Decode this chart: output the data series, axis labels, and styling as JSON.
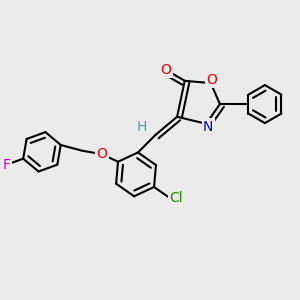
{
  "bg_color": "#ebebeb",
  "bond_color": "#000000",
  "bond_width": 1.5,
  "dbo": 0.018,
  "fig_size": [
    3.0,
    3.0
  ],
  "dpi": 100,
  "xlim": [
    0,
    300
  ],
  "ylim": [
    0,
    300
  ]
}
